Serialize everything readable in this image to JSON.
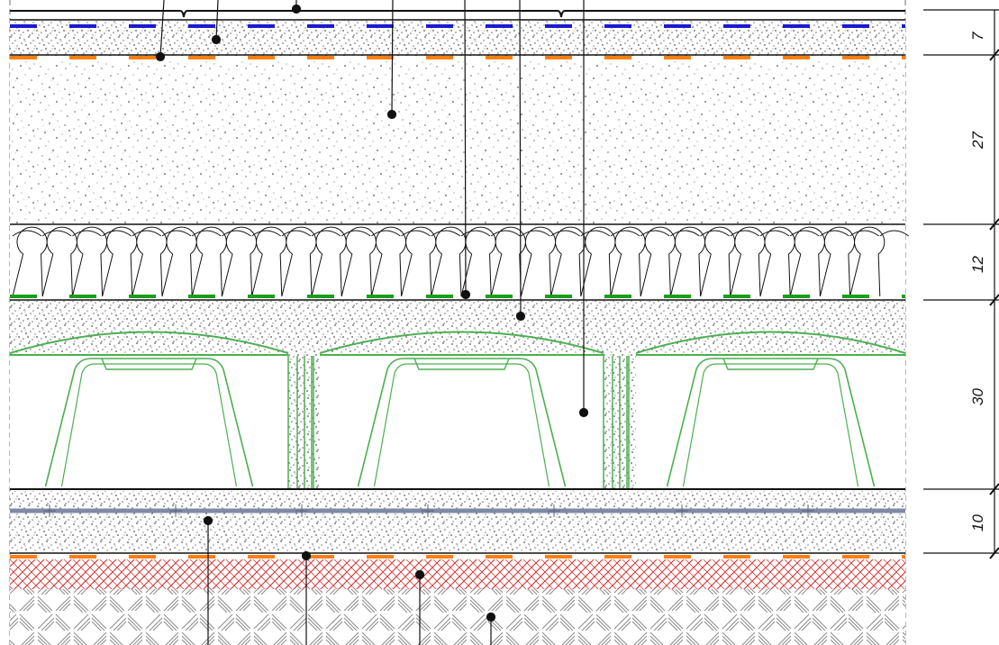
{
  "drawing": {
    "layers": [
      {
        "id": "screed-top",
        "thickness_label": "7",
        "material": "screed",
        "membranes": [
          "dashed-blue",
          "dashed-orange"
        ]
      },
      {
        "id": "gravel-fill",
        "thickness_label": "27",
        "material": "speckled-aggregate"
      },
      {
        "id": "insulation",
        "thickness_label": "12",
        "material": "insulation-wave",
        "membranes": [
          "dashed-green"
        ]
      },
      {
        "id": "waffle-slab",
        "thickness_label": "30",
        "material": "concrete-with-formwork-domes"
      },
      {
        "id": "lean-concrete",
        "thickness_label": "10",
        "material": "reinforced-screed",
        "rebar": "blue-gray"
      },
      {
        "id": "ground",
        "material": "hatched-soil",
        "membranes": [
          "dashed-orange"
        ]
      }
    ],
    "dimensions": [
      "7",
      "27",
      "12",
      "30",
      "10"
    ],
    "colors": {
      "line": "#111111",
      "speckle": "#555555",
      "membrane_blue": "#1a1ad0",
      "membrane_orange": "#ff7f0e",
      "membrane_green": "#1a9e1a",
      "formwork_green": "#4caf50",
      "rebar": "#7f8aa8",
      "hatch_red": "#d62728",
      "hatch_gray": "#888888"
    }
  }
}
